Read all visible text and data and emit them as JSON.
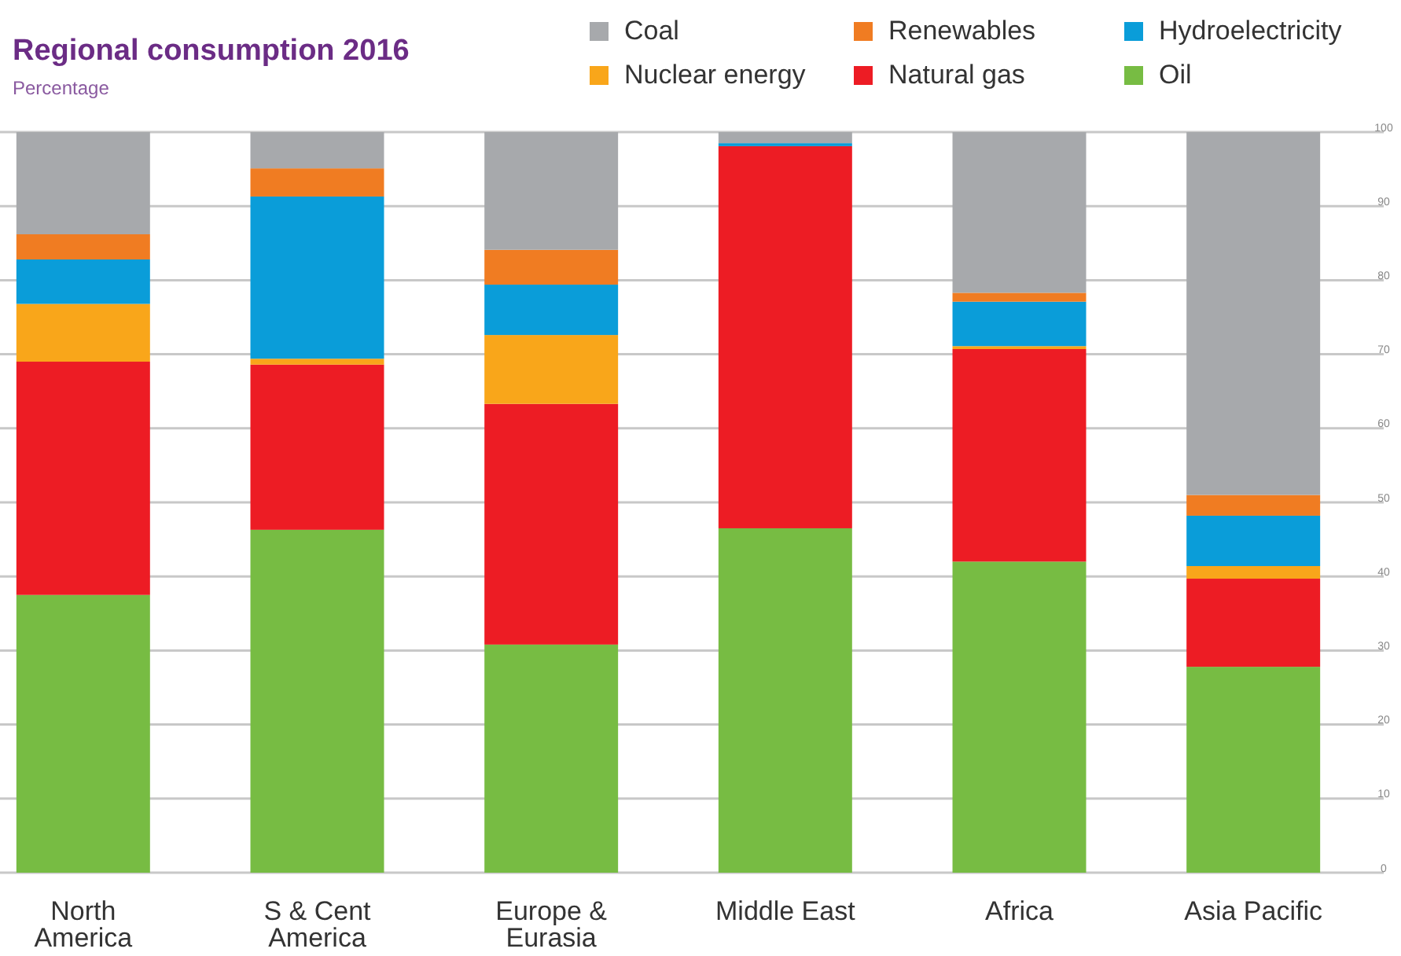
{
  "chart_data": {
    "type": "bar",
    "title": "Regional consumption 2016",
    "subtitle": "Percentage",
    "categories": [
      "North America",
      "S & Cent America",
      "Europe & Eurasia",
      "Middle East",
      "Africa",
      "Asia Pacific"
    ],
    "stacked": true,
    "series": [
      {
        "name": "Oil",
        "color": "#77bc43",
        "values": [
          37.5,
          46.3,
          30.8,
          46.5,
          42.0,
          27.8
        ]
      },
      {
        "name": "Natural gas",
        "color": "#ed1c24",
        "values": [
          31.5,
          22.3,
          32.5,
          51.6,
          28.7,
          11.9
        ]
      },
      {
        "name": "Nuclear energy",
        "color": "#f9a61a",
        "values": [
          7.8,
          0.8,
          9.3,
          0,
          0.4,
          1.7
        ]
      },
      {
        "name": "Hydroelectricity",
        "color": "#0a9dd9",
        "values": [
          6.0,
          21.9,
          6.8,
          0.4,
          6.0,
          6.8
        ]
      },
      {
        "name": "Renewables",
        "color": "#f07c22",
        "values": [
          3.4,
          3.8,
          4.7,
          0,
          1.2,
          2.8
        ]
      },
      {
        "name": "Coal",
        "color": "#a7a9ac",
        "values": [
          13.8,
          4.9,
          15.9,
          1.5,
          21.7,
          49.0
        ]
      }
    ],
    "ylim": [
      0,
      100
    ],
    "yticks": [
      0,
      10,
      20,
      30,
      40,
      50,
      60,
      70,
      80,
      90,
      100
    ],
    "grid": "y",
    "legend": "top right"
  }
}
